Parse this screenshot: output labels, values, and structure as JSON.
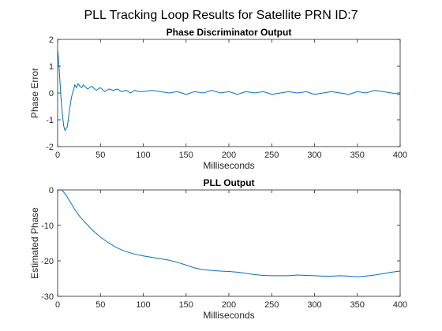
{
  "figure": {
    "suptitle": "PLL Tracking Loop Results for Satellite PRN ID:7"
  },
  "chart_data": [
    {
      "type": "line",
      "title": "Phase Discriminator Output",
      "xlabel": "Milliseconds",
      "ylabel": "Phase Error",
      "xlim": [
        0,
        400
      ],
      "ylim": [
        -2,
        2
      ],
      "xticks": [
        0,
        50,
        100,
        150,
        200,
        250,
        300,
        350,
        400
      ],
      "yticks": [
        -2,
        -1,
        0,
        1,
        2
      ],
      "grid": false,
      "color": "#0072BD",
      "series": [
        {
          "x": [
            0,
            1,
            2,
            3,
            4,
            5,
            6,
            7,
            8,
            9,
            10,
            11,
            12,
            13,
            14,
            15,
            16,
            17,
            18,
            19,
            20,
            22,
            24,
            26,
            28,
            30,
            35,
            40,
            45,
            50,
            55,
            60,
            65,
            70,
            75,
            80,
            85,
            90,
            95,
            100,
            110,
            120,
            130,
            140,
            150,
            160,
            170,
            180,
            190,
            200,
            210,
            220,
            230,
            240,
            250,
            260,
            270,
            280,
            290,
            300,
            310,
            320,
            330,
            340,
            350,
            360,
            370,
            380,
            390,
            400
          ],
          "values": [
            1.6,
            1.3,
            0.8,
            0.3,
            -0.2,
            -0.6,
            -0.9,
            -1.2,
            -1.35,
            -1.4,
            -1.3,
            -1.3,
            -1.1,
            -0.85,
            -0.6,
            -0.4,
            -0.2,
            -0.05,
            0.05,
            0.15,
            0.3,
            0.2,
            0.35,
            0.25,
            0.2,
            0.3,
            0.15,
            0.25,
            0.1,
            0.2,
            0.05,
            0.15,
            0.1,
            0.15,
            0.05,
            0.1,
            0.0,
            0.1,
            0.05,
            0.05,
            0.1,
            0.05,
            0.0,
            0.05,
            -0.05,
            0.05,
            0.0,
            0.1,
            0.0,
            0.05,
            -0.05,
            0.05,
            0.0,
            0.05,
            -0.05,
            0.0,
            0.05,
            0.0,
            0.05,
            -0.05,
            0.0,
            0.05,
            0.0,
            -0.05,
            0.05,
            0.0,
            0.1,
            0.05,
            0.0,
            -0.05
          ]
        }
      ]
    },
    {
      "type": "line",
      "title": "PLL Output",
      "xlabel": "Milliseconds",
      "ylabel": "Estimated Phase",
      "xlim": [
        0,
        400
      ],
      "ylim": [
        -30,
        0
      ],
      "xticks": [
        0,
        50,
        100,
        150,
        200,
        250,
        300,
        350,
        400
      ],
      "yticks": [
        -30,
        -20,
        -10,
        0
      ],
      "grid": false,
      "color": "#0072BD",
      "series": [
        {
          "x": [
            0,
            5,
            10,
            15,
            20,
            25,
            30,
            40,
            50,
            60,
            70,
            80,
            90,
            100,
            110,
            120,
            130,
            140,
            150,
            160,
            170,
            180,
            190,
            200,
            210,
            220,
            230,
            240,
            250,
            260,
            270,
            280,
            290,
            300,
            310,
            320,
            330,
            340,
            350,
            360,
            370,
            380,
            390,
            400
          ],
          "values": [
            0,
            0,
            -1.5,
            -3.5,
            -5.5,
            -7.2,
            -8.6,
            -11.2,
            -13.3,
            -15.0,
            -16.4,
            -17.4,
            -18.1,
            -18.6,
            -19.0,
            -19.4,
            -19.8,
            -20.4,
            -21.2,
            -22.0,
            -22.5,
            -22.7,
            -22.9,
            -23.0,
            -23.2,
            -23.5,
            -23.9,
            -24.1,
            -24.2,
            -24.2,
            -24.2,
            -24.0,
            -24.1,
            -24.2,
            -24.3,
            -24.3,
            -24.2,
            -24.3,
            -24.5,
            -24.3,
            -24.0,
            -23.6,
            -23.2,
            -22.9
          ]
        }
      ]
    }
  ]
}
